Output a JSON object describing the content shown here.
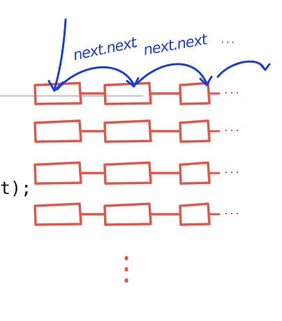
{
  "annotations": {
    "label_1": "next.next",
    "separator": "··",
    "label_2": "next.next",
    "trailing": "·  ·  ·"
  },
  "code": {
    "fragment": "t);"
  },
  "colors": {
    "node_stroke": "#e2574c",
    "ink": "#1a3fd6",
    "divider": "#999999"
  },
  "grid": {
    "rows": 4,
    "nodes_per_row": 3,
    "trailing_marker": "- · ·",
    "continuation": "vertical-ellipsis"
  }
}
